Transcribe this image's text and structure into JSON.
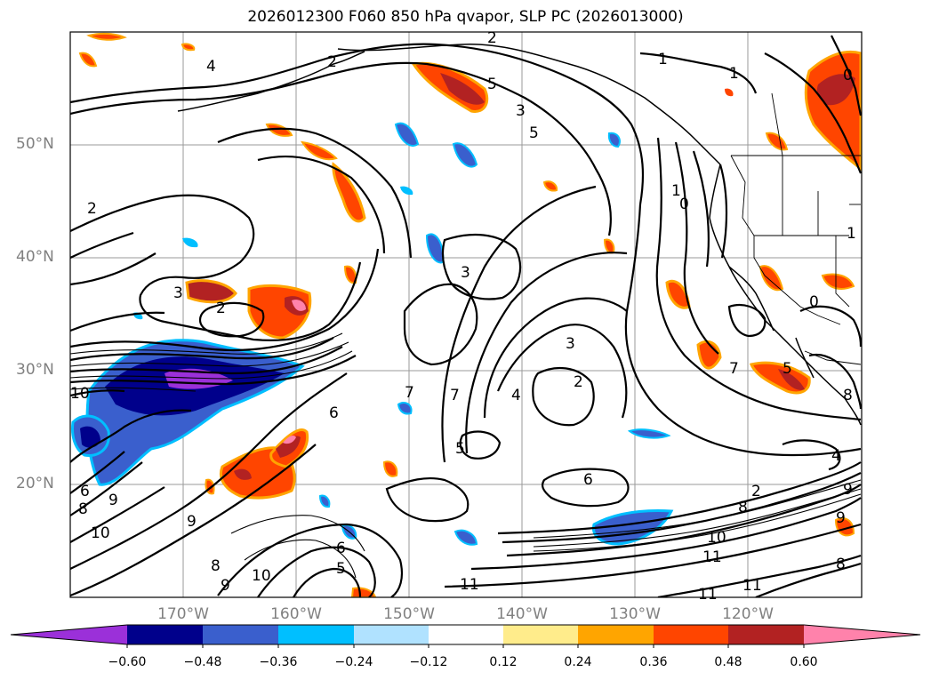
{
  "title": "2026012300 F060 850 hPa qvapor, SLP PC (2026013000)",
  "latitude_labels": [
    "50°N",
    "40°N",
    "30°N",
    "20°N"
  ],
  "longitude_labels": [
    "170°W",
    "160°W",
    "150°W",
    "140°W",
    "130°W",
    "120°W"
  ],
  "colorbar": {
    "ticks": [
      "−0.60",
      "−0.48",
      "−0.36",
      "−0.24",
      "−0.12",
      "0.12",
      "0.24",
      "0.36",
      "0.48",
      "0.60"
    ],
    "colors": [
      "#9b30d9",
      "#00008b",
      "#3a5fcd",
      "#00bfff",
      "#b0e2ff",
      "#ffffff",
      "#ffec8b",
      "#ffa500",
      "#ff4500",
      "#b22222",
      "#ff82ab"
    ]
  },
  "contour_labels": [
    "2",
    "4",
    "5",
    "5",
    "2",
    "3",
    "2",
    "3",
    "6",
    "10",
    "6",
    "8",
    "9",
    "10",
    "9",
    "8",
    "9",
    "6",
    "5",
    "10",
    "11",
    "5",
    "6",
    "3",
    "4",
    "2",
    "1",
    "1",
    "0",
    "1",
    "0",
    "7",
    "7",
    "8",
    "4",
    "2",
    "9",
    "8",
    "10",
    "11",
    "11",
    "11",
    "9",
    "8",
    "1",
    "0",
    "7",
    "5",
    "2",
    "3"
  ]
}
